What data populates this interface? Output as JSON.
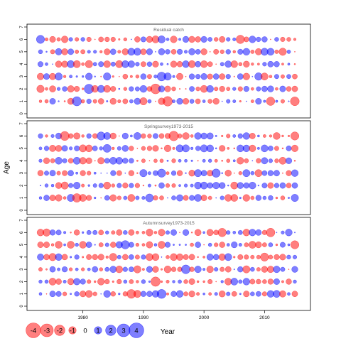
{
  "chart_data": {
    "type": "scatter",
    "ylabel": "Age",
    "xlabel": "Year",
    "x_range": [
      1973,
      2015
    ],
    "x_ticks": [
      1980,
      1990,
      2000,
      2010
    ],
    "y_ticks": [
      0,
      1,
      2,
      3,
      4,
      5,
      6,
      7
    ],
    "ylim": [
      0,
      7
    ],
    "ages": [
      1,
      2,
      3,
      4,
      5,
      6
    ],
    "panels": [
      {
        "title": "Residual catch",
        "seed": 11,
        "highlights": [
          {
            "year": 1992,
            "age": 2,
            "value": -2.8
          },
          {
            "year": 1994,
            "age": 1,
            "value": -2.6
          },
          {
            "year": 1981,
            "age": 2,
            "value": 2.5
          },
          {
            "year": 1979,
            "age": 1,
            "value": 2.4
          },
          {
            "year": 1993,
            "age": 3,
            "value": 2.2
          },
          {
            "year": 1973,
            "age": 6,
            "value": 1.9
          },
          {
            "year": 2006,
            "age": 6,
            "value": -2.0
          },
          {
            "year": 2011,
            "age": 1,
            "value": -2.0
          },
          {
            "year": 2015,
            "age": 1,
            "value": -2.2
          }
        ]
      },
      {
        "title": "Springsurvey1973-2015",
        "seed": 29,
        "highlights": [
          {
            "year": 1995,
            "age": 6,
            "value": -2.6
          },
          {
            "year": 1977,
            "age": 6,
            "value": -2.3
          },
          {
            "year": 1979,
            "age": 1,
            "value": -2.1
          },
          {
            "year": 1983,
            "age": 6,
            "value": 1.9
          },
          {
            "year": 1993,
            "age": 3,
            "value": 1.9
          },
          {
            "year": 2002,
            "age": 3,
            "value": 2.0
          },
          {
            "year": 1984,
            "age": 5,
            "value": 1.8
          },
          {
            "year": 2015,
            "age": 6,
            "value": -1.9
          },
          {
            "year": 1991,
            "age": 1,
            "value": 1.8
          }
        ]
      },
      {
        "title": "Autumnsurvey1973-2015",
        "seed": 47,
        "highlights": [
          {
            "year": 1988,
            "age": 1,
            "value": -2.2
          },
          {
            "year": 1993,
            "age": 1,
            "value": 2.3
          },
          {
            "year": 1992,
            "age": 2,
            "value": -2.5
          },
          {
            "year": 1997,
            "age": 3,
            "value": 2.2
          },
          {
            "year": 2003,
            "age": 6,
            "value": -2.0
          },
          {
            "year": 2011,
            "age": 6,
            "value": -2.1
          },
          {
            "year": 2015,
            "age": 5,
            "value": -1.9
          },
          {
            "year": 1987,
            "age": 5,
            "value": 2.0
          },
          {
            "year": 2010,
            "age": 4,
            "value": -1.9
          }
        ]
      }
    ],
    "legend": {
      "values": [
        -4,
        -3,
        -2,
        -1,
        0,
        1,
        2,
        3,
        4
      ],
      "labels": [
        "-4",
        "-3",
        "-2",
        "-1",
        "0",
        "1",
        "2",
        "3",
        "4"
      ]
    },
    "colors": {
      "negative": "#ff0000",
      "positive": "#0000ff",
      "frame": "#000000",
      "title": "#666666"
    }
  }
}
